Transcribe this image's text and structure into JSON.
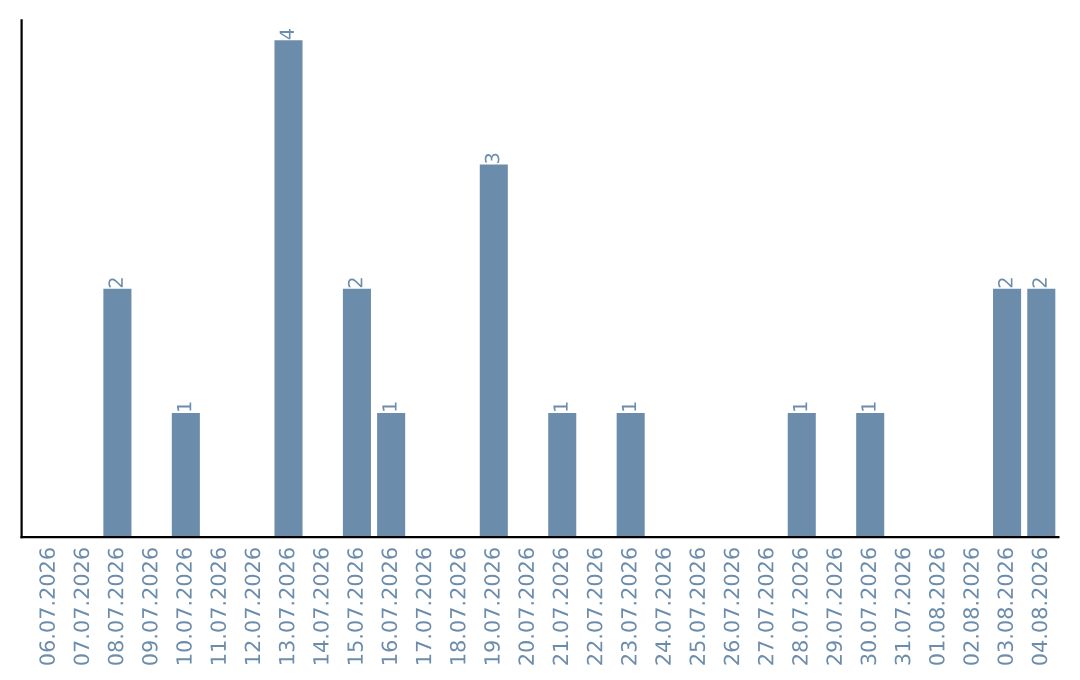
{
  "chart_data": {
    "type": "bar",
    "categories": [
      "06.07.2026",
      "07.07.2026",
      "08.07.2026",
      "09.07.2026",
      "10.07.2026",
      "11.07.2026",
      "12.07.2026",
      "13.07.2026",
      "14.07.2026",
      "15.07.2026",
      "16.07.2026",
      "17.07.2026",
      "18.07.2026",
      "19.07.2026",
      "20.07.2026",
      "21.07.2026",
      "22.07.2026",
      "23.07.2026",
      "24.07.2026",
      "25.07.2026",
      "26.07.2026",
      "27.07.2026",
      "28.07.2026",
      "29.07.2026",
      "30.07.2026",
      "31.07.2026",
      "01.08.2026",
      "02.08.2026",
      "03.08.2026",
      "04.08.2026"
    ],
    "values": [
      0,
      0,
      2,
      0,
      1,
      0,
      0,
      4,
      0,
      2,
      1,
      0,
      0,
      3,
      0,
      1,
      0,
      1,
      0,
      0,
      0,
      0,
      1,
      0,
      1,
      0,
      0,
      0,
      2,
      2
    ],
    "value_labels": [
      null,
      null,
      "2",
      null,
      "1",
      null,
      null,
      "4",
      null,
      "2",
      "1",
      null,
      null,
      "3",
      null,
      "1",
      null,
      "1",
      null,
      null,
      null,
      null,
      "1",
      null,
      "1",
      null,
      null,
      null,
      "2",
      "2"
    ],
    "color": "#6b8cab",
    "tick_labels": "x",
    "grid": false,
    "legend": false
  }
}
